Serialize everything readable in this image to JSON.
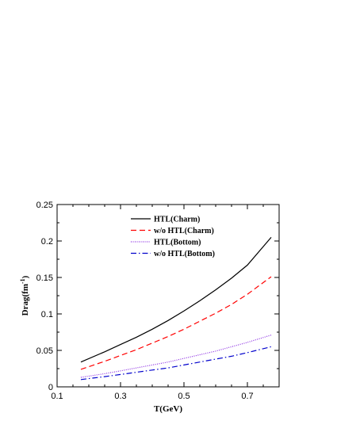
{
  "chart_data": {
    "type": "line",
    "title": "",
    "xlabel": "T(GeV)",
    "ylabel_main": "Drag(fm",
    "ylabel_sup": "-1",
    "ylabel_close": ")",
    "xlim": [
      0.1,
      0.8
    ],
    "ylim": [
      0,
      0.25
    ],
    "xticks": [
      0.1,
      0.3,
      0.5,
      0.7
    ],
    "xtick_labels": [
      "0.1",
      "0.3",
      "0.5",
      "0.7"
    ],
    "yticks": [
      0,
      0.05,
      0.1,
      0.15,
      0.2,
      0.25
    ],
    "ytick_labels": [
      "0",
      "0.05",
      "0.1",
      "0.15",
      "0.2",
      "0.25"
    ],
    "grid": false,
    "legend_position": "top-left inside",
    "x": [
      0.175,
      0.25,
      0.3,
      0.35,
      0.4,
      0.45,
      0.5,
      0.55,
      0.6,
      0.65,
      0.7,
      0.775
    ],
    "series": [
      {
        "name": "HTL(Charm)",
        "color": "#000000",
        "dash": "solid",
        "values": [
          0.034,
          0.048,
          0.058,
          0.068,
          0.079,
          0.091,
          0.104,
          0.118,
          0.133,
          0.149,
          0.167,
          0.205
        ]
      },
      {
        "name": "w/o HTL(Charm)",
        "color": "#ff0000",
        "dash": "dashed",
        "values": [
          0.024,
          0.035,
          0.043,
          0.051,
          0.06,
          0.069,
          0.079,
          0.09,
          0.101,
          0.113,
          0.127,
          0.151
        ]
      },
      {
        "name": "HTL(Bottom)",
        "color": "#8a2be2",
        "dash": "dotted",
        "values": [
          0.013,
          0.018,
          0.022,
          0.026,
          0.03,
          0.034,
          0.039,
          0.044,
          0.049,
          0.055,
          0.061,
          0.071
        ]
      },
      {
        "name": "w/o HTL(Bottom)",
        "color": "#0000cc",
        "dash": "dash-dot",
        "values": [
          0.01,
          0.014,
          0.017,
          0.02,
          0.023,
          0.026,
          0.03,
          0.034,
          0.038,
          0.042,
          0.047,
          0.055
        ]
      }
    ]
  }
}
